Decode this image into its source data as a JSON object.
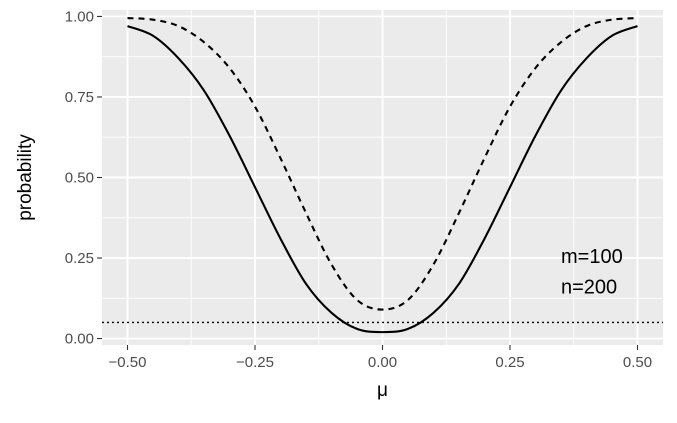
{
  "chart_data": {
    "type": "line",
    "xlabel": "μ",
    "ylabel": "probability",
    "xlim": [
      -0.55,
      0.55
    ],
    "ylim": [
      -0.02,
      1.02
    ],
    "x_ticks": [
      {
        "value": -0.5,
        "label": "−0.50"
      },
      {
        "value": -0.25,
        "label": "−0.25"
      },
      {
        "value": 0,
        "label": "0.00"
      },
      {
        "value": 0.25,
        "label": "0.25"
      },
      {
        "value": 0.5,
        "label": "0.50"
      }
    ],
    "y_ticks": [
      {
        "value": 0,
        "label": "0.00"
      },
      {
        "value": 0.25,
        "label": "0.25"
      },
      {
        "value": 0.5,
        "label": "0.50"
      },
      {
        "value": 0.75,
        "label": "0.75"
      },
      {
        "value": 1,
        "label": "1.00"
      }
    ],
    "grid": true,
    "panel_background": "#ebebeb",
    "series": [
      {
        "linetype": "solid",
        "color": "#000000",
        "x": [
          -0.5,
          -0.45,
          -0.4,
          -0.35,
          -0.3,
          -0.25,
          -0.2,
          -0.15,
          -0.1,
          -0.05,
          0,
          0.05,
          0.1,
          0.15,
          0.2,
          0.25,
          0.3,
          0.35,
          0.4,
          0.45,
          0.5
        ],
        "y": [
          0.97,
          0.94,
          0.87,
          0.77,
          0.63,
          0.47,
          0.31,
          0.17,
          0.08,
          0.03,
          0.02,
          0.03,
          0.08,
          0.17,
          0.31,
          0.47,
          0.63,
          0.77,
          0.87,
          0.94,
          0.97
        ]
      },
      {
        "linetype": "dashed",
        "color": "#000000",
        "x": [
          -0.5,
          -0.45,
          -0.4,
          -0.35,
          -0.3,
          -0.25,
          -0.2,
          -0.15,
          -0.1,
          -0.05,
          0,
          0.05,
          0.1,
          0.15,
          0.2,
          0.25,
          0.3,
          0.35,
          0.4,
          0.45,
          0.5
        ],
        "y": [
          0.995,
          0.99,
          0.97,
          0.92,
          0.84,
          0.72,
          0.56,
          0.39,
          0.23,
          0.12,
          0.09,
          0.12,
          0.23,
          0.39,
          0.56,
          0.72,
          0.84,
          0.92,
          0.97,
          0.99,
          0.995
        ]
      }
    ],
    "reference_line": {
      "y": 0.05,
      "linetype": "dotted",
      "color": "#000000"
    },
    "annotations": [
      {
        "text": "m=100",
        "x": 0.35,
        "y": 0.235
      },
      {
        "text": "n=200",
        "x": 0.35,
        "y": 0.14
      }
    ]
  }
}
